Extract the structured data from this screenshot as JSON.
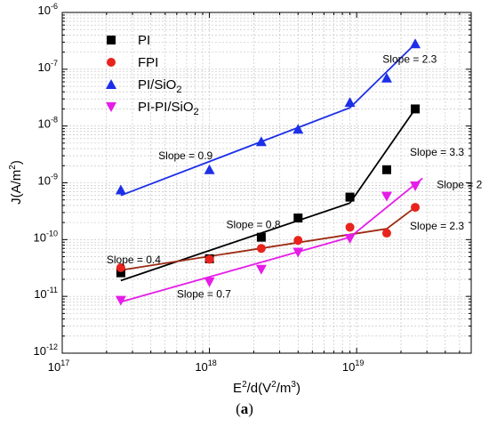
{
  "caption": {
    "open": "(",
    "letter": "a",
    "close": ")"
  },
  "chart_data": {
    "type": "scatter",
    "xlabel": {
      "base": "E",
      "sup1": "2",
      "mid": "/d(V",
      "sup2": "2",
      "mid2": "/m",
      "sup3": "3",
      "end": ")"
    },
    "ylabel": {
      "base": "J(A/m",
      "sup": "2",
      "end": ")"
    },
    "x_scale": "log",
    "y_scale": "log",
    "xlim": [
      1e+17,
      6e+19
    ],
    "ylim": [
      1e-12,
      1e-06
    ],
    "grid": true,
    "x_ticks": [
      {
        "value": 1e+17,
        "base": "10",
        "exp": "17"
      },
      {
        "value": 1e+18,
        "base": "10",
        "exp": "18"
      },
      {
        "value": 1e+19,
        "base": "10",
        "exp": "19"
      }
    ],
    "y_ticks": [
      {
        "value": 1e-12,
        "base": "10",
        "exp": "-12"
      },
      {
        "value": 1e-11,
        "base": "10",
        "exp": "-11"
      },
      {
        "value": 1e-10,
        "base": "10",
        "exp": "-10"
      },
      {
        "value": 1e-09,
        "base": "10",
        "exp": "-9"
      },
      {
        "value": 1e-08,
        "base": "10",
        "exp": "-8"
      },
      {
        "value": 1e-07,
        "base": "10",
        "exp": "-7"
      },
      {
        "value": 1e-06,
        "base": "10",
        "exp": "-6"
      }
    ],
    "legend_position": "top-left",
    "series": [
      {
        "name": "PI",
        "name_sub": "",
        "name_suffix": "",
        "marker": "square",
        "color": "#000000",
        "fit_color": "#000000",
        "x": [
          2.5e+17,
          1e+18,
          2.25e+18,
          4e+18,
          9e+18,
          1.6e+19,
          2.5e+19
        ],
        "y": [
          2.6e-11,
          4.6e-11,
          1.1e-10,
          2.4e-10,
          5.6e-10,
          1.7e-09,
          2e-08
        ],
        "fits": [
          {
            "x": [
              2.5e+17,
              9e+18
            ],
            "y": [
              1.9e-11,
              4.4e-10
            ]
          },
          {
            "x": [
              9e+18,
              2.5e+19
            ],
            "y": [
              4.4e-10,
              2e-08
            ]
          }
        ]
      },
      {
        "name": "FPI",
        "name_sub": "",
        "name_suffix": "",
        "marker": "circle",
        "color": "#e8231d",
        "fit_color": "#9c2a12",
        "x": [
          2.5e+17,
          1e+18,
          2.25e+18,
          4e+18,
          9e+18,
          1.6e+19,
          2.5e+19
        ],
        "y": [
          3.2e-11,
          4.5e-11,
          7e-11,
          9.7e-11,
          1.65e-10,
          1.3e-10,
          3.7e-10
        ],
        "fits": [
          {
            "x": [
              2.5e+17,
              1.6e+19
            ],
            "y": [
              2.9e-11,
              1.55e-10
            ]
          },
          {
            "x": [
              1.6e+19,
              2.5e+19
            ],
            "y": [
              1.55e-10,
              3.7e-10
            ]
          }
        ]
      },
      {
        "name": "PI/SiO",
        "name_sub": "2",
        "name_suffix": "",
        "marker": "triangle-up",
        "color": "#1c2fe8",
        "fit_color": "#1c2fe8",
        "x": [
          2.5e+17,
          1e+18,
          2.25e+18,
          4e+18,
          9e+18,
          1.6e+19,
          2.5e+19
        ],
        "y": [
          7.5e-10,
          1.7e-09,
          5.3e-09,
          8.8e-09,
          2.6e-08,
          7e-08,
          2.8e-07
        ],
        "fits": [
          {
            "x": [
              2.5e+17,
              9e+18
            ],
            "y": [
              6e-10,
              2.1e-08
            ]
          },
          {
            "x": [
              9e+18,
              2.5e+19
            ],
            "y": [
              2.1e-08,
              2.8e-07
            ]
          }
        ]
      },
      {
        "name": "PI-PI/SiO",
        "name_sub": "2",
        "name_suffix": "",
        "marker": "triangle-down",
        "color": "#e61ce8",
        "fit_color": "#e61ce8",
        "x": [
          2.5e+17,
          1e+18,
          2.25e+18,
          4e+18,
          9e+18,
          1.6e+19,
          2.5e+19
        ],
        "y": [
          8.5e-12,
          1.8e-11,
          3e-11,
          6e-11,
          1.05e-10,
          5.8e-10,
          8.8e-10
        ],
        "fits": [
          {
            "x": [
              2.5e+17,
              9e+18
            ],
            "y": [
              8e-12,
              1.1e-10
            ]
          },
          {
            "x": [
              9e+18,
              2.8e+19
            ],
            "y": [
              1.1e-10,
              1.2e-09
            ]
          }
        ]
      }
    ],
    "annotations": [
      {
        "text": "Slope = 2.3",
        "x": 1.5e+19,
        "y": 1.3e-07
      },
      {
        "text": "Slope = 0.9",
        "x": 4.5e+17,
        "y": 2.6e-09
      },
      {
        "text": "Slope = 3.3",
        "x": 2.3e+19,
        "y": 3e-09
      },
      {
        "text": "Slope = 2",
        "x": 3.5e+19,
        "y": 8e-10
      },
      {
        "text": "Slope = 0.8",
        "x": 1.3e+18,
        "y": 1.6e-10
      },
      {
        "text": "Slope = 2.3",
        "x": 2.3e+19,
        "y": 1.5e-10
      },
      {
        "text": "Slope = 0.4",
        "x": 2e+17,
        "y": 3.8e-11
      },
      {
        "text": "Slope = 0.7",
        "x": 6e+17,
        "y": 9.5e-12
      }
    ]
  }
}
